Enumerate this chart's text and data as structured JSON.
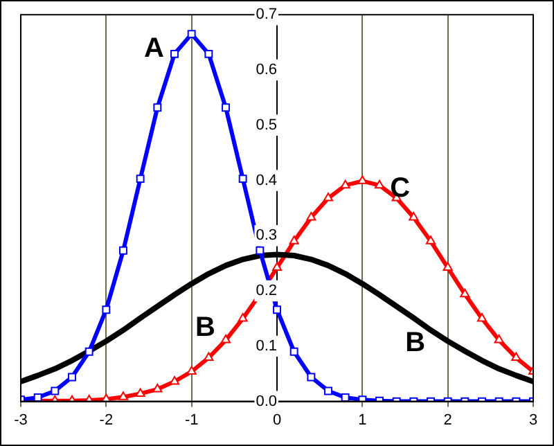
{
  "chart_data": {
    "type": "line",
    "x": [
      -3,
      -2.8,
      -2.6,
      -2.4,
      -2.2,
      -2,
      -1.8,
      -1.6,
      -1.4,
      -1.2,
      -1,
      -0.8,
      -0.6,
      -0.4,
      -0.2,
      0,
      0.2,
      0.4,
      0.6,
      0.8,
      1,
      1.2,
      1.4,
      1.6,
      1.8,
      2,
      2.2,
      2.4,
      2.6,
      2.8,
      3
    ],
    "series": [
      {
        "color": "#0000ff",
        "marker": "square",
        "values": [
          0.003,
          0.007,
          0.019,
          0.044,
          0.09,
          0.166,
          0.273,
          0.403,
          0.532,
          0.629,
          0.665,
          0.629,
          0.532,
          0.403,
          0.273,
          0.166,
          0.09,
          0.044,
          0.019,
          0.007,
          0.003,
          0.001,
          0,
          0,
          0,
          0,
          0,
          0,
          0,
          0,
          0
        ]
      },
      {
        "color": "#000000",
        "marker": "none",
        "values": [
          0.036,
          0.047,
          0.059,
          0.074,
          0.091,
          0.109,
          0.129,
          0.151,
          0.172,
          0.193,
          0.213,
          0.231,
          0.246,
          0.257,
          0.264,
          0.266,
          0.264,
          0.257,
          0.246,
          0.231,
          0.213,
          0.193,
          0.172,
          0.151,
          0.129,
          0.109,
          0.091,
          0.074,
          0.059,
          0.047,
          0.036
        ]
      },
      {
        "color": "#ff0000",
        "marker": "triangle",
        "values": [
          0,
          0.001,
          0.001,
          0.001,
          0.002,
          0.004,
          0.008,
          0.014,
          0.022,
          0.036,
          0.054,
          0.079,
          0.111,
          0.15,
          0.194,
          0.242,
          0.29,
          0.333,
          0.368,
          0.391,
          0.399,
          0.391,
          0.368,
          0.333,
          0.29,
          0.242,
          0.194,
          0.15,
          0.111,
          0.079,
          0.054
        ]
      }
    ],
    "xlim": [
      -3,
      3
    ],
    "xticks": [
      -3,
      -2,
      -1,
      0,
      1,
      2,
      3
    ],
    "ylim": [
      0,
      0.7
    ],
    "yticks": [
      {
        "value": 0,
        "label": "0.0"
      },
      0.1,
      0.2,
      0.3,
      0.4,
      0.5,
      0.6,
      0.7
    ],
    "grid": "x",
    "legend": false,
    "annotations": [
      "A",
      "B",
      "B",
      "C"
    ]
  }
}
